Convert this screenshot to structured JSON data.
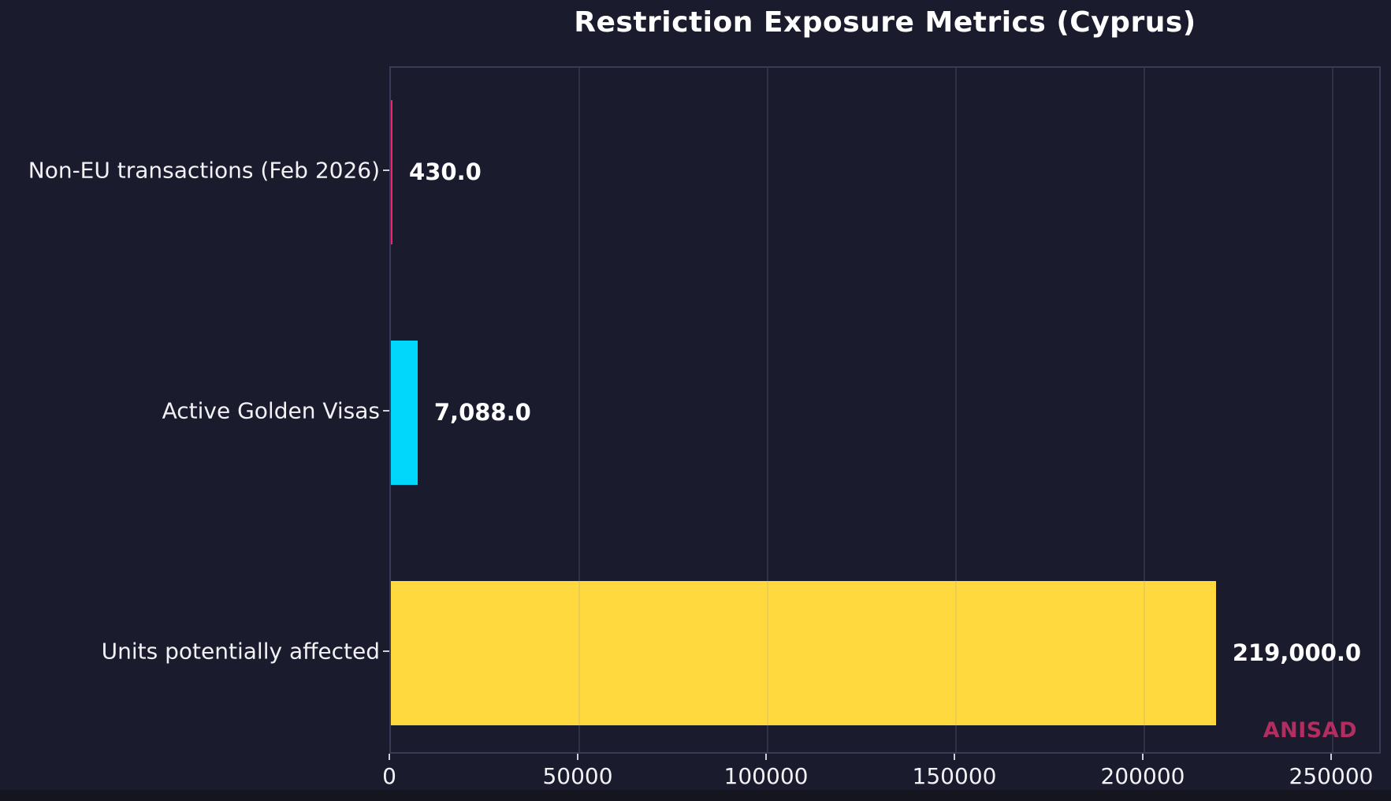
{
  "title": "Restriction Exposure Metrics (Cyprus)",
  "watermark": "ANISAD",
  "chart_data": {
    "type": "bar",
    "orientation": "horizontal",
    "title": "Restriction Exposure Metrics (Cyprus)",
    "categories": [
      "Non-EU transactions (Feb 2026)",
      "Active Golden Visas",
      "Units potentially affected"
    ],
    "values": [
      430.0,
      7088.0,
      219000.0
    ],
    "value_labels": [
      "430.0",
      "7,088.0",
      "219,000.0"
    ],
    "bar_colors": [
      "#ef246b",
      "#00d7fb",
      "#ffd93d"
    ],
    "xlim": [
      0,
      263000
    ],
    "x_ticks": [
      0,
      50000,
      100000,
      150000,
      200000,
      250000
    ],
    "x_tick_labels": [
      "0",
      "50000",
      "100000",
      "150000",
      "200000",
      "250000"
    ],
    "grid": true,
    "legend": false,
    "xlabel": "",
    "ylabel": ""
  },
  "colors": {
    "background": "#1a1b2c",
    "spine": "#3a3a57",
    "grid": "rgba(150,150,185,0.18)",
    "text": "#f2f2f6",
    "value_text": "#ffffff",
    "watermark": "#b22e61"
  }
}
